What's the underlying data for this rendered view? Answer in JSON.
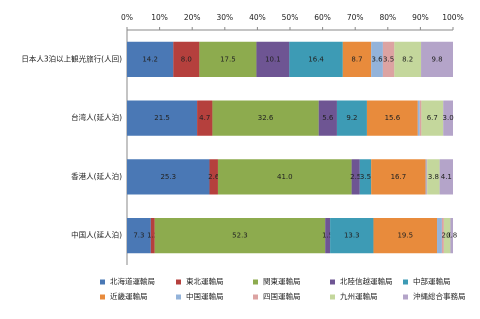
{
  "chart_data": {
    "type": "stacked_bar_horizontal",
    "categories": [
      "日本人3泊以上観光旅行(人回)",
      "台湾人(延人泊)",
      "香港人(延人泊)",
      "中国人(延人泊)"
    ],
    "xlim": [
      0,
      100
    ],
    "xticks": [
      {
        "value": 0,
        "label": "0%"
      },
      {
        "value": 10,
        "label": "10%"
      },
      {
        "value": 20,
        "label": "20%"
      },
      {
        "value": 30,
        "label": "30%"
      },
      {
        "value": 40,
        "label": "40%"
      },
      {
        "value": 50,
        "label": "50%"
      },
      {
        "value": 60,
        "label": "60%"
      },
      {
        "value": 70,
        "label": "70%"
      },
      {
        "value": 80,
        "label": "80%"
      },
      {
        "value": 90,
        "label": "90%"
      },
      {
        "value": 100,
        "label": "100%"
      }
    ],
    "legend": "bottom",
    "series": [
      {
        "name": "北海道運輸局",
        "color": "#4a78b5",
        "values": [
          14.2,
          21.5,
          25.3,
          7.3
        ],
        "value_labels": [
          "14.2",
          "21.5",
          "25.3",
          "7.3"
        ]
      },
      {
        "name": "東北運輸局",
        "color": "#b5403d",
        "values": [
          8.0,
          4.7,
          2.6,
          1.2
        ],
        "value_labels": [
          "8.0",
          "4.7",
          "2.6",
          "1.2"
        ]
      },
      {
        "name": "関東運輸局",
        "color": "#8dab4e",
        "values": [
          17.5,
          32.6,
          41.0,
          52.3
        ],
        "value_labels": [
          "17.5",
          "32.6",
          "41.0",
          "52.3"
        ]
      },
      {
        "name": "北陸信越運輸局",
        "color": "#6e5593",
        "values": [
          10.1,
          5.6,
          2.5,
          1.5
        ],
        "value_labels": [
          "10.1",
          "5.6",
          "2.5",
          "1.5"
        ]
      },
      {
        "name": "中部運輸局",
        "color": "#3d9bb5",
        "values": [
          16.4,
          9.2,
          3.5,
          13.3
        ],
        "value_labels": [
          "16.4",
          "9.2",
          "3.5",
          "13.3"
        ]
      },
      {
        "name": "近畿運輸局",
        "color": "#e88b3c",
        "values": [
          8.7,
          15.6,
          16.7,
          19.5
        ],
        "value_labels": [
          "8.7",
          "15.6",
          "16.7",
          "19.5"
        ]
      },
      {
        "name": "中国運輸局",
        "color": "#93b3da",
        "values": [
          3.6,
          0.6,
          0.3,
          1.5
        ],
        "value_labels": [
          "3.6",
          null,
          null,
          null
        ]
      },
      {
        "name": "四国運輸局",
        "color": "#dca3a2",
        "values": [
          3.5,
          0.5,
          0.2,
          0.6
        ],
        "value_labels": [
          "3.5",
          null,
          null,
          null
        ]
      },
      {
        "name": "九州運輸局",
        "color": "#c4d79c",
        "values": [
          8.2,
          6.7,
          3.8,
          2.0
        ],
        "value_labels": [
          "8.2",
          "6.7",
          "3.8",
          "2.0"
        ]
      },
      {
        "name": "沖縄総合事務局",
        "color": "#b4a4c9",
        "values": [
          9.8,
          3.0,
          4.1,
          0.8
        ],
        "value_labels": [
          "9.8",
          "3.0",
          "4.1",
          "0.8"
        ]
      }
    ]
  }
}
